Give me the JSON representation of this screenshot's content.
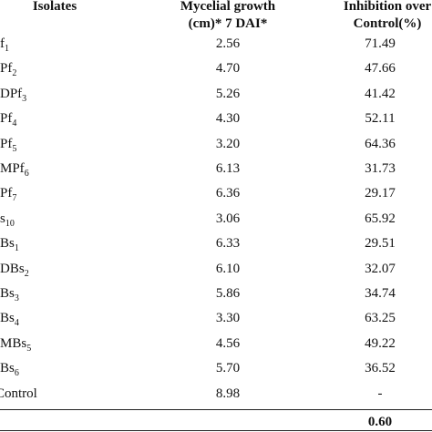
{
  "header": {
    "isolates": "Isolates",
    "growth": [
      "Mycelial growth",
      "(cm)* 7 DAI*"
    ],
    "inhibition": [
      "Inhibition over",
      "Control(%)"
    ]
  },
  "rows": [
    {
      "isolate": "f",
      "sub": "1",
      "growth": "2.56",
      "inhibition": "71.49"
    },
    {
      "isolate": "Pf",
      "sub": "2",
      "growth": "4.70",
      "inhibition": "47.66"
    },
    {
      "isolate": "DPf",
      "sub": "3",
      "growth": "5.26",
      "inhibition": "41.42"
    },
    {
      "isolate": "Pf",
      "sub": "4",
      "growth": "4.30",
      "inhibition": "52.11"
    },
    {
      "isolate": "Pf",
      "sub": "5",
      "growth": "3.20",
      "inhibition": "64.36"
    },
    {
      "isolate": "MPf",
      "sub": "6",
      "growth": "6.13",
      "inhibition": "31.73"
    },
    {
      "isolate": "Pf",
      "sub": "7",
      "growth": "6.36",
      "inhibition": "29.17"
    },
    {
      "isolate": "s",
      "sub": "10",
      "growth": "3.06",
      "inhibition": "65.92"
    },
    {
      "isolate": "Bs",
      "sub": "1",
      "growth": "6.33",
      "inhibition": "29.51"
    },
    {
      "isolate": "DBs",
      "sub": "2",
      "growth": "6.10",
      "inhibition": "32.07"
    },
    {
      "isolate": "Bs",
      "sub": "3",
      "growth": "5.86",
      "inhibition": "34.74"
    },
    {
      "isolate": "Bs",
      "sub": "4",
      "growth": "3.30",
      "inhibition": "63.25"
    },
    {
      "isolate": "MBs",
      "sub": "5",
      "growth": "4.56",
      "inhibition": "49.22"
    },
    {
      "isolate": "Bs",
      "sub": "6",
      "growth": "5.70",
      "inhibition": "36.52"
    },
    {
      "isolate": "Control",
      "growth": "8.98",
      "inhibition": "-"
    }
  ],
  "footer": {
    "inhibition": "0.60"
  }
}
